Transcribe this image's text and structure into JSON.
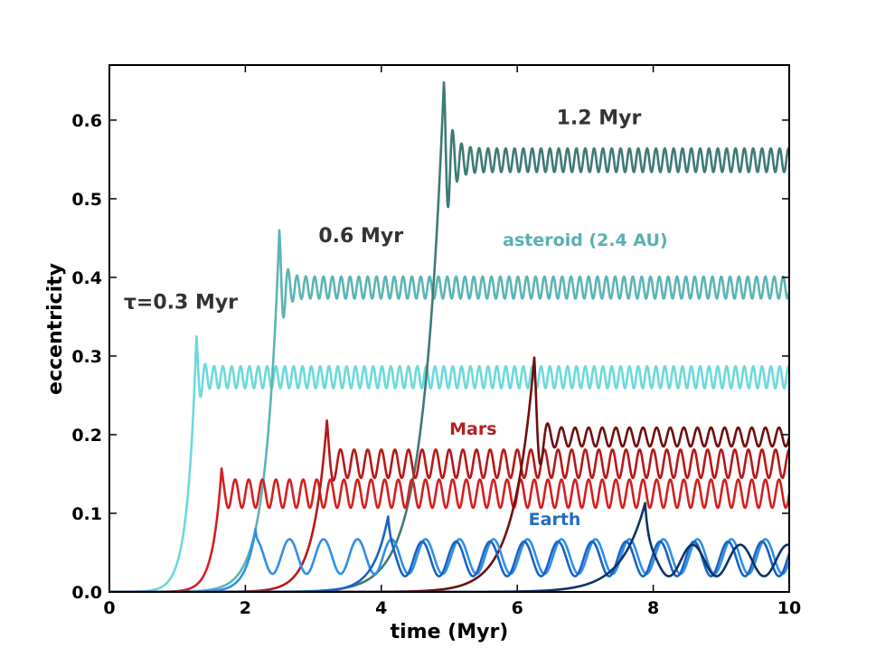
{
  "chart_data": {
    "type": "line",
    "title": "",
    "xlabel": "time (Myr)",
    "ylabel": "eccentricity",
    "xlim": [
      0,
      10
    ],
    "ylim": [
      0,
      0.67
    ],
    "xticks": [
      0,
      2,
      4,
      6,
      8,
      10
    ],
    "xtick_labels": [
      "0",
      "2",
      "4",
      "6",
      "8",
      "10"
    ],
    "yticks": [
      0.0,
      0.1,
      0.2,
      0.3,
      0.4,
      0.5,
      0.6
    ],
    "ytick_labels": [
      "0.0",
      "0.1",
      "0.2",
      "0.3",
      "0.4",
      "0.5",
      "0.6"
    ],
    "grid": false,
    "legend": "none",
    "annotations": [
      {
        "id": "tau-03",
        "text": "τ=0.3 Myr",
        "x": 1.05,
        "y": 0.36,
        "color": "#333333"
      },
      {
        "id": "tau-06",
        "text": "0.6 Myr",
        "x": 3.7,
        "y": 0.445,
        "color": "#333333"
      },
      {
        "id": "tau-12",
        "text": "1.2 Myr",
        "x": 7.2,
        "y": 0.595,
        "color": "#333333"
      },
      {
        "id": "asteroid",
        "text": "asteroid (2.4 AU)",
        "x": 7.0,
        "y": 0.44,
        "color": "#5aafb0"
      },
      {
        "id": "mars",
        "text": "Mars",
        "x": 5.35,
        "y": 0.2,
        "color": "#b22222"
      },
      {
        "id": "earth",
        "text": "Earth",
        "x": 6.55,
        "y": 0.085,
        "color": "#1f6dc0"
      }
    ],
    "series": [
      {
        "name": "asteroid, tau=0.3 Myr",
        "group": "asteroid",
        "color": "#6cd9db",
        "width": 2.6,
        "t0": 1.1,
        "width_rise": 0.13,
        "peak": 0.325,
        "peak_t": 1.28,
        "mean": 0.273,
        "amp_end": 0.014,
        "ring": 0.05,
        "period": 0.13
      },
      {
        "name": "asteroid, tau=0.6 Myr",
        "group": "asteroid",
        "color": "#5cb4b4",
        "width": 2.6,
        "t0": 2.2,
        "width_rise": 0.2,
        "peak": 0.46,
        "peak_t": 2.5,
        "mean": 0.387,
        "amp_end": 0.014,
        "ring": 0.07,
        "period": 0.13
      },
      {
        "name": "asteroid, tau=1.2 Myr",
        "group": "asteroid",
        "color": "#3e7a76",
        "width": 2.6,
        "t0": 4.4,
        "width_rise": 0.3,
        "peak": 0.648,
        "peak_t": 4.92,
        "mean": 0.549,
        "amp_end": 0.015,
        "ring": 0.1,
        "period": 0.13
      },
      {
        "name": "Mars, tau=0.3 Myr",
        "group": "mars",
        "color": "#d42020",
        "width": 2.6,
        "t0": 1.45,
        "width_rise": 0.13,
        "peak": 0.157,
        "peak_t": 1.65,
        "mean": 0.125,
        "amp_end": 0.018,
        "ring": 0.022,
        "period": 0.2
      },
      {
        "name": "Mars, tau=0.6 Myr",
        "group": "mars",
        "color": "#b81818",
        "width": 2.6,
        "t0": 2.85,
        "width_rise": 0.2,
        "peak": 0.218,
        "peak_t": 3.2,
        "mean": 0.163,
        "amp_end": 0.018,
        "ring": 0.04,
        "period": 0.2
      },
      {
        "name": "Mars, tau=1.2 Myr",
        "group": "mars",
        "color": "#6e0f0f",
        "width": 2.6,
        "t0": 5.7,
        "width_rise": 0.3,
        "peak": 0.298,
        "peak_t": 6.25,
        "mean": 0.197,
        "amp_end": 0.012,
        "ring": 0.07,
        "period": 0.2
      },
      {
        "name": "Earth, tau=0.3 Myr",
        "group": "earth",
        "color": "#2f8fe8",
        "width": 2.6,
        "t0": 1.85,
        "width_rise": 0.15,
        "peak": 0.08,
        "peak_t": 2.15,
        "mean": 0.045,
        "amp_end": 0.022,
        "ring": 0.012,
        "period": 0.5
      },
      {
        "name": "Earth, tau=0.6 Myr",
        "group": "earth",
        "color": "#1a63c2",
        "width": 2.6,
        "t0": 3.6,
        "width_rise": 0.22,
        "peak": 0.096,
        "peak_t": 4.1,
        "mean": 0.042,
        "amp_end": 0.022,
        "ring": 0.03,
        "period": 0.5
      },
      {
        "name": "Earth, tau=1.2 Myr",
        "group": "earth",
        "color": "#0c3366",
        "width": 2.6,
        "t0": 7.1,
        "width_rise": 0.35,
        "peak": 0.113,
        "peak_t": 7.88,
        "mean": 0.04,
        "amp_end": 0.02,
        "ring": 0.045,
        "period": 0.7
      }
    ]
  }
}
